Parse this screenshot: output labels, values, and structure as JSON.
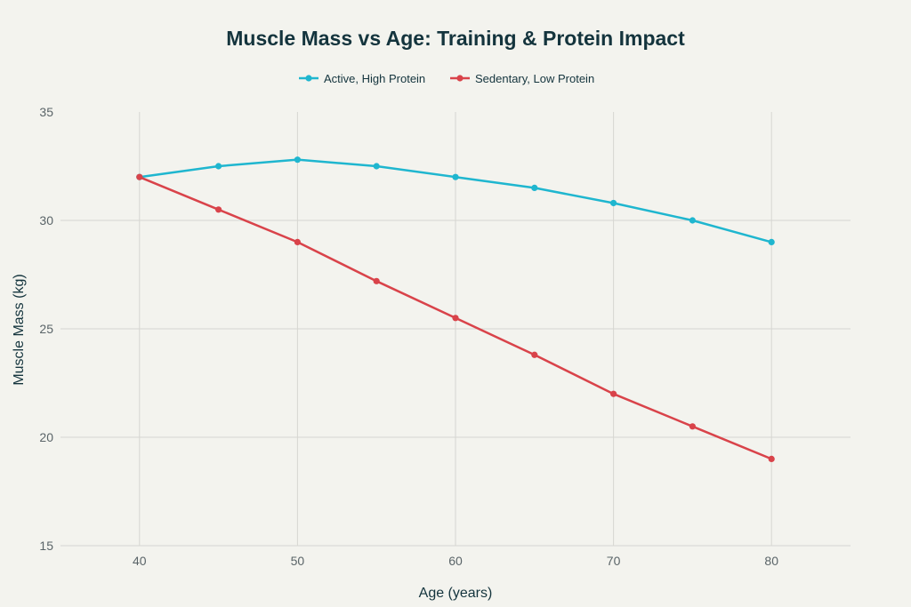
{
  "chart_data": {
    "type": "line",
    "title": "Muscle Mass vs Age: Training & Protein Impact",
    "xlabel": "Age (years)",
    "ylabel": "Muscle Mass (kg)",
    "x": [
      40,
      45,
      50,
      55,
      60,
      65,
      70,
      75,
      80
    ],
    "xlim": [
      35,
      85
    ],
    "ylim": [
      15,
      35
    ],
    "x_ticks": [
      40,
      50,
      60,
      70,
      80
    ],
    "y_ticks": [
      15,
      20,
      25,
      30,
      35
    ],
    "grid": true,
    "legend_position": "top-center",
    "series": [
      {
        "name": "Active, High Protein",
        "color": "#1fb6cf",
        "values": [
          32.0,
          32.5,
          32.8,
          32.5,
          32.0,
          31.5,
          30.8,
          30.0,
          29.0
        ]
      },
      {
        "name": "Sedentary, Low Protein",
        "color": "#d9434a",
        "values": [
          32.0,
          30.5,
          29.0,
          27.2,
          25.5,
          23.8,
          22.0,
          20.5,
          19.0
        ]
      }
    ]
  }
}
